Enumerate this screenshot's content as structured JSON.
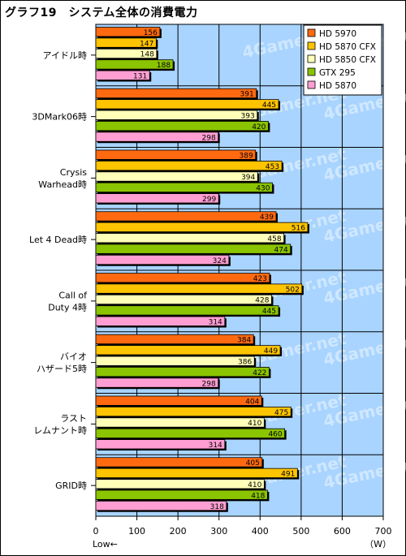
{
  "title": "グラフ19　システム全体の消費電力",
  "chart_data": {
    "type": "bar",
    "orientation": "horizontal",
    "title": "グラフ19　システム全体の消費電力",
    "categories": [
      [
        "アイドル時"
      ],
      [
        "3DMark06時"
      ],
      [
        "Crysis",
        "Warhead時"
      ],
      [
        "Let 4 Dead時"
      ],
      [
        "Call of",
        "Duty 4時"
      ],
      [
        "バイオ",
        "ハザード5時"
      ],
      [
        "ラスト",
        "レムナント時"
      ],
      [
        "GRID時"
      ]
    ],
    "series": [
      {
        "name": "HD 5970",
        "color": "#ff6a10",
        "values": [
          156,
          391,
          389,
          439,
          423,
          384,
          404,
          405
        ]
      },
      {
        "name": "HD 5870 CFX",
        "color": "#ffc400",
        "values": [
          147,
          445,
          453,
          516,
          502,
          449,
          475,
          491
        ]
      },
      {
        "name": "HD 5850 CFX",
        "color": "#ffffb8",
        "values": [
          148,
          393,
          394,
          458,
          428,
          386,
          410,
          410
        ]
      },
      {
        "name": "GTX 295",
        "color": "#8bc400",
        "values": [
          188,
          420,
          430,
          474,
          445,
          422,
          460,
          418
        ]
      },
      {
        "name": "HD 5870",
        "color": "#ff9ed2",
        "values": [
          131,
          298,
          299,
          324,
          314,
          298,
          314,
          318
        ]
      }
    ],
    "xlim": [
      0,
      700
    ],
    "xticks": [
      0,
      100,
      200,
      300,
      400,
      500,
      600,
      700
    ],
    "xlabel": "（W）",
    "note": "Low←",
    "grid": true,
    "legend_position": "top-right",
    "watermark": "4Gamer.net",
    "colors": {
      "plot_background": "#a8d4ff",
      "gridline": "#000000",
      "bar_border": "#000000"
    }
  }
}
